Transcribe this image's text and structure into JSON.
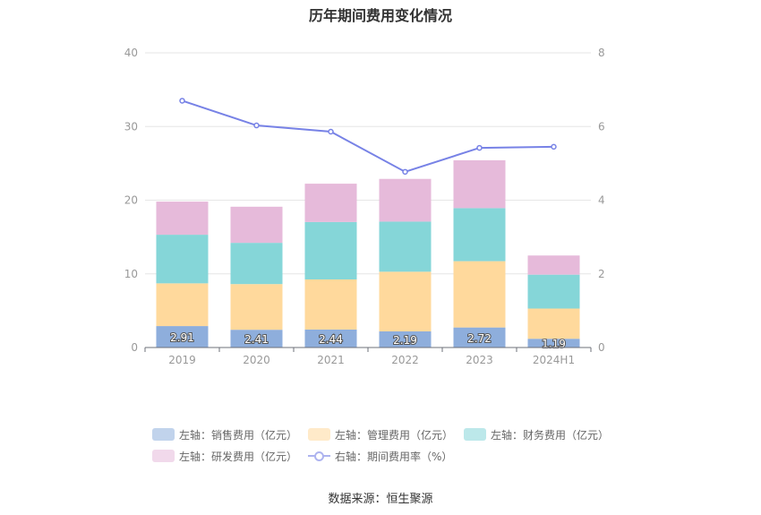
{
  "title": "历年期间费用变化情况",
  "source": "数据来源：恒生聚源",
  "chart_data": {
    "type": "bar",
    "stacked": true,
    "categories": [
      "2019",
      "2020",
      "2021",
      "2022",
      "2023",
      "2024H1"
    ],
    "y_left": {
      "ylim": [
        0,
        40
      ],
      "ticks": [
        0,
        10,
        20,
        30,
        40
      ]
    },
    "y_right": {
      "ylim": [
        0,
        8
      ],
      "ticks": [
        0,
        2,
        4,
        6,
        8
      ]
    },
    "grid": true,
    "legend_position": "bottom",
    "series": [
      {
        "name": "左轴：销售费用（亿元）",
        "axis": "left",
        "type": "bar",
        "color": "#8eaedc",
        "values": [
          2.91,
          2.41,
          2.44,
          2.19,
          2.72,
          1.19
        ],
        "show_labels": true
      },
      {
        "name": "左轴：管理费用（亿元）",
        "axis": "left",
        "type": "bar",
        "color": "#ffd99c",
        "values": [
          5.8,
          6.2,
          6.8,
          8.1,
          9.0,
          4.1
        ]
      },
      {
        "name": "左轴：财务费用（亿元）",
        "axis": "left",
        "type": "bar",
        "color": "#85d6d8",
        "values": [
          6.6,
          5.6,
          7.8,
          6.8,
          7.2,
          4.6
        ]
      },
      {
        "name": "左轴：研发费用（亿元）",
        "axis": "left",
        "type": "bar",
        "color": "#e6bada",
        "values": [
          4.5,
          4.9,
          5.2,
          5.8,
          6.5,
          2.6
        ]
      },
      {
        "name": "右轴：期间费用率（%）",
        "axis": "right",
        "type": "line",
        "color": "#7782e6",
        "values": [
          6.7,
          6.03,
          5.86,
          4.77,
          5.42,
          5.45
        ]
      }
    ]
  }
}
